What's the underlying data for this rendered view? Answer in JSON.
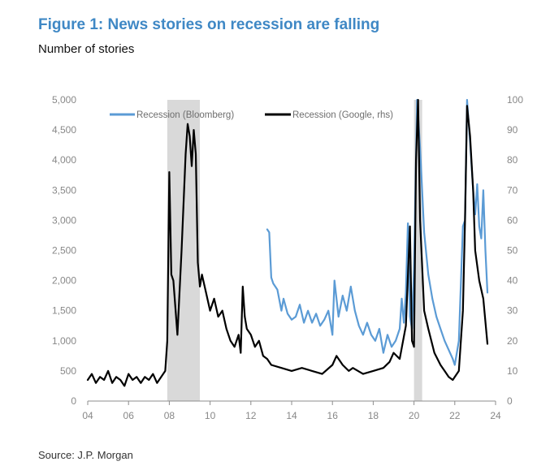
{
  "header": {
    "title": "Figure 1: News stories on recession are falling",
    "subtitle": "Number of stories"
  },
  "footer": {
    "source": "Source: J.P. Morgan"
  },
  "colors": {
    "title": "#3f88c5",
    "bloomberg": "#5b9bd5",
    "google": "#000000",
    "recession_band": "#d9d9d9"
  },
  "chart_data": {
    "type": "line",
    "x_range": [
      2004,
      2024
    ],
    "x_ticks": [
      "04",
      "06",
      "08",
      "10",
      "12",
      "14",
      "16",
      "18",
      "20",
      "22",
      "24"
    ],
    "left_axis": {
      "range": [
        0,
        5000
      ],
      "tick_labels": [
        "0",
        "500",
        "1,000",
        "1,500",
        "2,000",
        "2,500",
        "3,000",
        "3,500",
        "4,000",
        "4,500",
        "5,000"
      ]
    },
    "right_axis": {
      "range": [
        0,
        100
      ],
      "tick_labels": [
        "0",
        "10",
        "20",
        "30",
        "40",
        "50",
        "60",
        "70",
        "80",
        "90",
        "100"
      ]
    },
    "shaded_periods": [
      {
        "start": 2007.9,
        "end": 2009.5
      },
      {
        "start": 2020.0,
        "end": 2020.4
      }
    ],
    "legend_position": "top",
    "grid": false,
    "series": [
      {
        "name": "Recession (Bloomberg)",
        "axis": "left",
        "points": [
          [
            2012.8,
            2850
          ],
          [
            2012.9,
            2800
          ],
          [
            2013.0,
            2050
          ],
          [
            2013.1,
            1950
          ],
          [
            2013.3,
            1850
          ],
          [
            2013.5,
            1500
          ],
          [
            2013.6,
            1700
          ],
          [
            2013.8,
            1450
          ],
          [
            2014.0,
            1350
          ],
          [
            2014.2,
            1400
          ],
          [
            2014.4,
            1600
          ],
          [
            2014.6,
            1300
          ],
          [
            2014.8,
            1500
          ],
          [
            2015.0,
            1300
          ],
          [
            2015.2,
            1450
          ],
          [
            2015.4,
            1250
          ],
          [
            2015.6,
            1350
          ],
          [
            2015.8,
            1500
          ],
          [
            2016.0,
            1100
          ],
          [
            2016.1,
            2000
          ],
          [
            2016.3,
            1400
          ],
          [
            2016.5,
            1750
          ],
          [
            2016.7,
            1500
          ],
          [
            2016.9,
            1900
          ],
          [
            2017.1,
            1500
          ],
          [
            2017.3,
            1250
          ],
          [
            2017.5,
            1100
          ],
          [
            2017.7,
            1300
          ],
          [
            2017.9,
            1100
          ],
          [
            2018.1,
            1000
          ],
          [
            2018.3,
            1200
          ],
          [
            2018.5,
            800
          ],
          [
            2018.7,
            1100
          ],
          [
            2018.9,
            900
          ],
          [
            2019.1,
            1000
          ],
          [
            2019.3,
            1200
          ],
          [
            2019.4,
            1700
          ],
          [
            2019.5,
            1300
          ],
          [
            2019.6,
            1800
          ],
          [
            2019.7,
            2950
          ],
          [
            2019.8,
            1400
          ],
          [
            2019.9,
            1200
          ],
          [
            2020.0,
            2200
          ],
          [
            2020.15,
            5000
          ],
          [
            2020.3,
            4200
          ],
          [
            2020.5,
            2800
          ],
          [
            2020.7,
            2100
          ],
          [
            2020.9,
            1700
          ],
          [
            2021.1,
            1400
          ],
          [
            2021.3,
            1200
          ],
          [
            2021.5,
            1000
          ],
          [
            2021.7,
            850
          ],
          [
            2021.9,
            700
          ],
          [
            2022.0,
            600
          ],
          [
            2022.2,
            1000
          ],
          [
            2022.4,
            2900
          ],
          [
            2022.5,
            3000
          ],
          [
            2022.6,
            5000
          ],
          [
            2022.75,
            4300
          ],
          [
            2022.9,
            3500
          ],
          [
            2023.0,
            3100
          ],
          [
            2023.1,
            3600
          ],
          [
            2023.2,
            2900
          ],
          [
            2023.3,
            2700
          ],
          [
            2023.4,
            3500
          ],
          [
            2023.5,
            2500
          ],
          [
            2023.6,
            1800
          ]
        ]
      },
      {
        "name": "Recession (Google, rhs)",
        "axis": "right",
        "points": [
          [
            2004.0,
            7
          ],
          [
            2004.2,
            9
          ],
          [
            2004.4,
            6
          ],
          [
            2004.6,
            8
          ],
          [
            2004.8,
            7
          ],
          [
            2005.0,
            10
          ],
          [
            2005.2,
            6
          ],
          [
            2005.4,
            8
          ],
          [
            2005.6,
            7
          ],
          [
            2005.8,
            5
          ],
          [
            2006.0,
            9
          ],
          [
            2006.2,
            7
          ],
          [
            2006.4,
            8
          ],
          [
            2006.6,
            6
          ],
          [
            2006.8,
            8
          ],
          [
            2007.0,
            7
          ],
          [
            2007.2,
            9
          ],
          [
            2007.4,
            6
          ],
          [
            2007.6,
            8
          ],
          [
            2007.8,
            10
          ],
          [
            2007.9,
            20
          ],
          [
            2008.0,
            76
          ],
          [
            2008.1,
            42
          ],
          [
            2008.2,
            40
          ],
          [
            2008.4,
            22
          ],
          [
            2008.6,
            50
          ],
          [
            2008.8,
            82
          ],
          [
            2008.9,
            92
          ],
          [
            2009.0,
            88
          ],
          [
            2009.1,
            78
          ],
          [
            2009.2,
            90
          ],
          [
            2009.3,
            82
          ],
          [
            2009.4,
            46
          ],
          [
            2009.5,
            38
          ],
          [
            2009.6,
            42
          ],
          [
            2009.8,
            36
          ],
          [
            2010.0,
            30
          ],
          [
            2010.2,
            34
          ],
          [
            2010.4,
            28
          ],
          [
            2010.6,
            30
          ],
          [
            2010.8,
            24
          ],
          [
            2011.0,
            20
          ],
          [
            2011.2,
            18
          ],
          [
            2011.4,
            22
          ],
          [
            2011.5,
            16
          ],
          [
            2011.6,
            38
          ],
          [
            2011.7,
            28
          ],
          [
            2011.8,
            24
          ],
          [
            2012.0,
            22
          ],
          [
            2012.2,
            18
          ],
          [
            2012.4,
            20
          ],
          [
            2012.6,
            15
          ],
          [
            2012.8,
            14
          ],
          [
            2013.0,
            12
          ],
          [
            2013.5,
            11
          ],
          [
            2014.0,
            10
          ],
          [
            2014.5,
            11
          ],
          [
            2015.0,
            10
          ],
          [
            2015.5,
            9
          ],
          [
            2016.0,
            12
          ],
          [
            2016.2,
            15
          ],
          [
            2016.5,
            12
          ],
          [
            2016.8,
            10
          ],
          [
            2017.0,
            11
          ],
          [
            2017.5,
            9
          ],
          [
            2018.0,
            10
          ],
          [
            2018.5,
            11
          ],
          [
            2018.8,
            13
          ],
          [
            2019.0,
            16
          ],
          [
            2019.3,
            14
          ],
          [
            2019.6,
            25
          ],
          [
            2019.8,
            58
          ],
          [
            2019.9,
            20
          ],
          [
            2020.0,
            18
          ],
          [
            2020.1,
            80
          ],
          [
            2020.2,
            100
          ],
          [
            2020.3,
            60
          ],
          [
            2020.5,
            30
          ],
          [
            2020.7,
            24
          ],
          [
            2021.0,
            16
          ],
          [
            2021.3,
            12
          ],
          [
            2021.5,
            10
          ],
          [
            2021.7,
            8
          ],
          [
            2021.9,
            7
          ],
          [
            2022.0,
            8
          ],
          [
            2022.2,
            10
          ],
          [
            2022.4,
            30
          ],
          [
            2022.5,
            60
          ],
          [
            2022.6,
            98
          ],
          [
            2022.75,
            88
          ],
          [
            2022.9,
            70
          ],
          [
            2023.0,
            50
          ],
          [
            2023.2,
            40
          ],
          [
            2023.4,
            34
          ],
          [
            2023.6,
            19
          ]
        ]
      }
    ]
  }
}
